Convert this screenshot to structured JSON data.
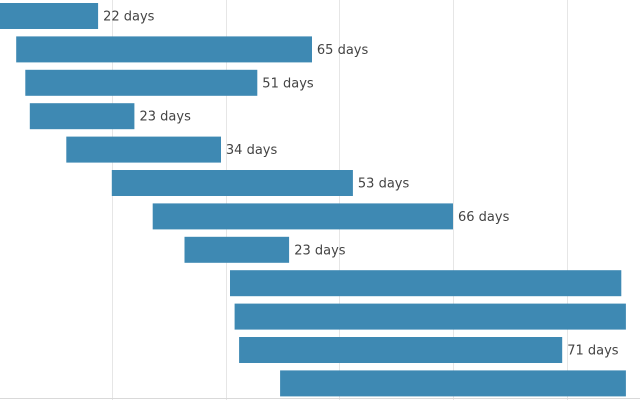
{
  "chart_data": {
    "type": "bar",
    "orientation": "horizontal-gantt",
    "bar_color": "#3e89b3",
    "label_color": "#444444",
    "grid": true,
    "legend": "none",
    "bars": [
      {
        "start": 0,
        "duration": 22,
        "label": "22 days"
      },
      {
        "start": 4,
        "duration": 65,
        "label": "65 days"
      },
      {
        "start": 6,
        "duration": 51,
        "label": "51 days"
      },
      {
        "start": 7,
        "duration": 23,
        "label": "23 days"
      },
      {
        "start": 15,
        "duration": 34,
        "label": "34 days"
      },
      {
        "start": 25,
        "duration": 53,
        "label": "53 days"
      },
      {
        "start": 34,
        "duration": 66,
        "label": "66 days"
      },
      {
        "start": 41,
        "duration": 23,
        "label": "23 days"
      },
      {
        "start": 51,
        "duration": 86,
        "label": ""
      },
      {
        "start": 52,
        "duration": 86,
        "label": ""
      },
      {
        "start": 53,
        "duration": 71,
        "label": "71 days"
      },
      {
        "start": 62,
        "duration": 76,
        "label": ""
      }
    ]
  }
}
